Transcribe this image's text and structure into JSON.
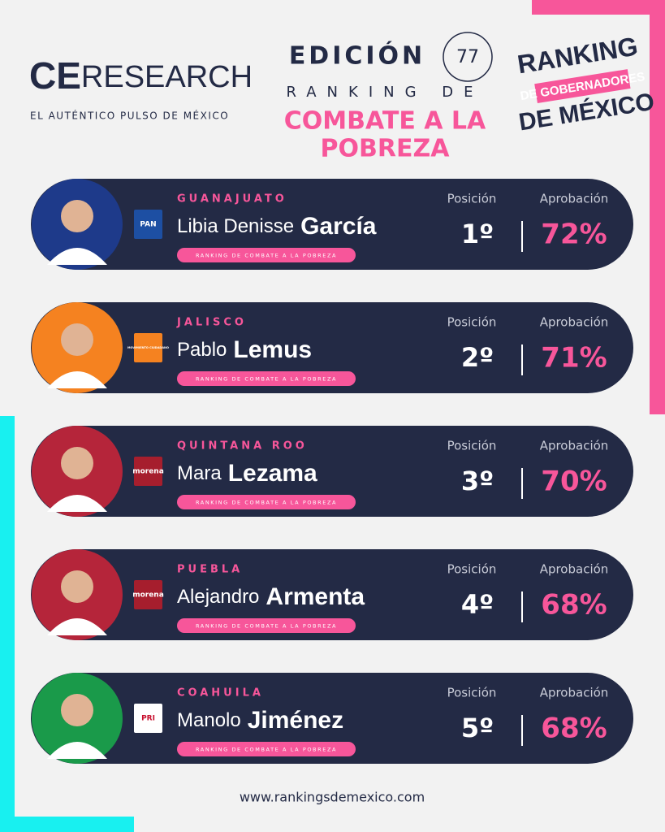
{
  "header": {
    "logo_ce": "CE",
    "logo_research": "RESEARCH",
    "tagline": "EL AUTÉNTICO PULSO DE MÉXICO",
    "edition": "EDICIÓN",
    "edition_number": "77",
    "subtitle": "RANKING DE",
    "title_line1": "COMBATE A LA",
    "title_line2": "POBREZA",
    "badge_line1": "RANKING",
    "badge_line2": "DE GOBERNADORES",
    "badge_line3": "DE MÉXICO"
  },
  "columns": {
    "position": "Posición",
    "approval": "Aprobación"
  },
  "tag": "RANKING DE COMBATE A LA POBREZA",
  "rows": [
    {
      "state": "GUANAJUATO",
      "first_name": "Libia Denisse",
      "last_name": "García",
      "party": "PAN",
      "position": "1º",
      "approval": "72%"
    },
    {
      "state": "JALISCO",
      "first_name": "Pablo",
      "last_name": "Lemus",
      "party": "MOVIMIENTO CIUDADANO",
      "position": "2º",
      "approval": "71%"
    },
    {
      "state": "QUINTANA ROO",
      "first_name": "Mara",
      "last_name": "Lezama",
      "party": "morena",
      "position": "3º",
      "approval": "70%"
    },
    {
      "state": "PUEBLA",
      "first_name": "Alejandro",
      "last_name": "Armenta",
      "party": "morena",
      "position": "4º",
      "approval": "68%"
    },
    {
      "state": "COAHUILA",
      "first_name": "Manolo",
      "last_name": "Jiménez",
      "party": "PRI",
      "position": "5º",
      "approval": "68%"
    }
  ],
  "footer": {
    "url": "www.rankingsdemexico.com"
  }
}
